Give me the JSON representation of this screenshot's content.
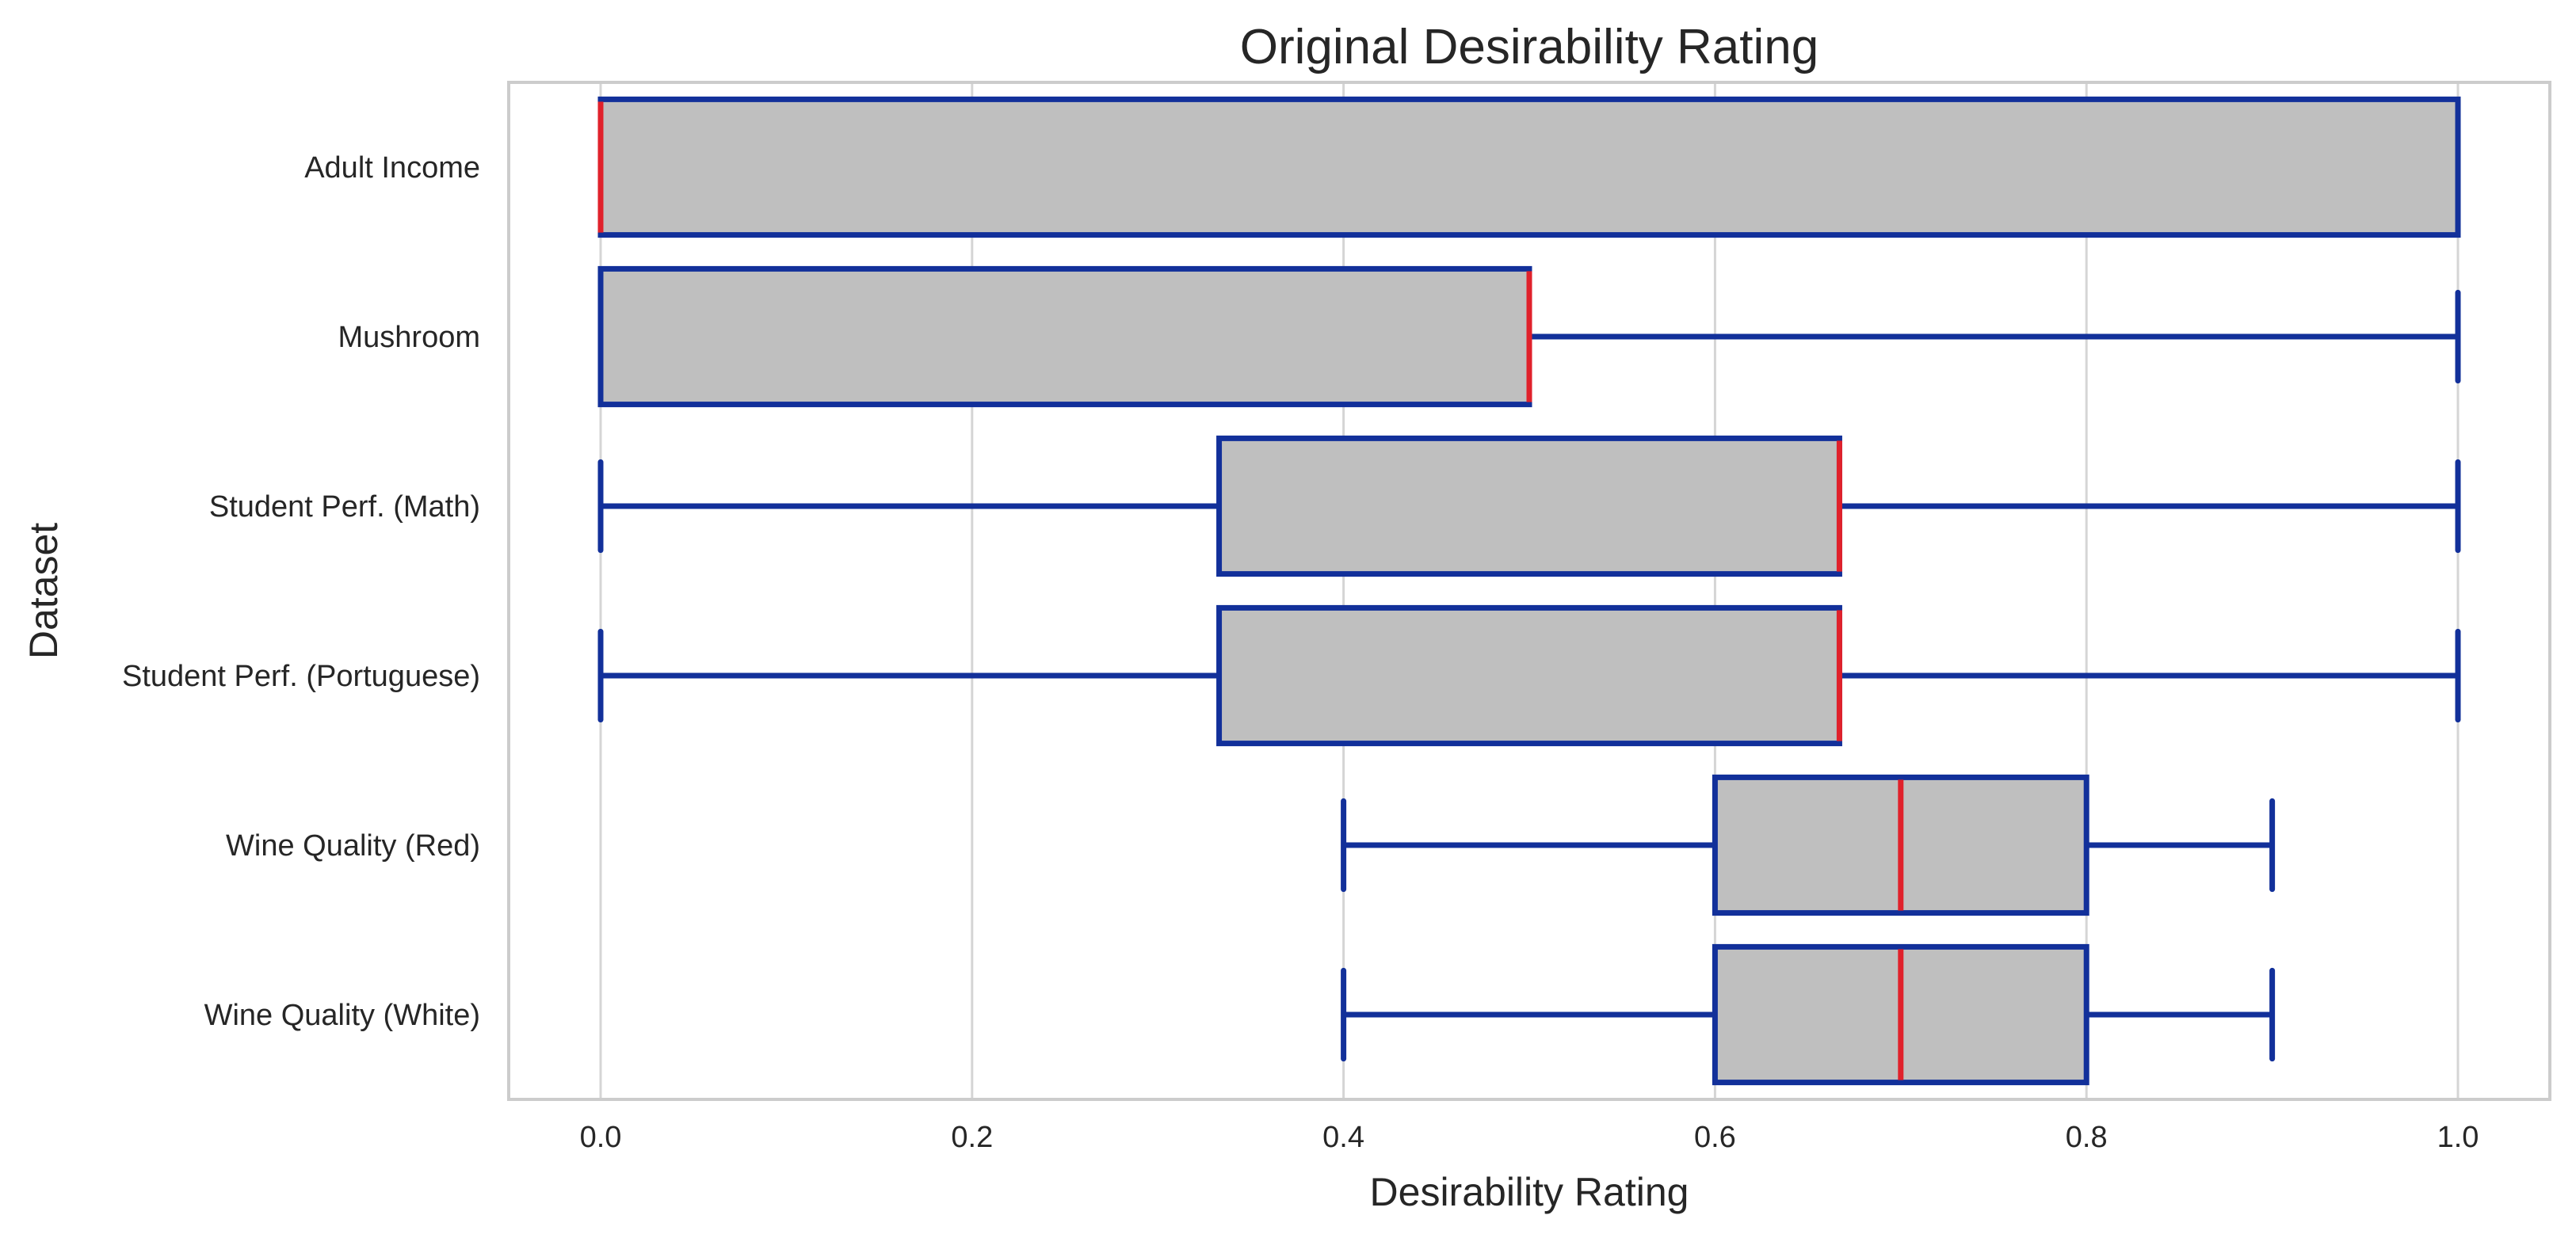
{
  "colors": {
    "box_fill": "#bfbfbf",
    "box_edge": "#12309a",
    "median": "#e0212b",
    "grid": "#d5d5d5",
    "frame": "#cccccc",
    "text": "#262626"
  },
  "chart_data": {
    "type": "box",
    "orientation": "horizontal",
    "title": "Original Desirability Rating",
    "xlabel": "Desirability Rating",
    "ylabel": "Dataset",
    "xlim": [
      -0.05,
      1.05
    ],
    "xticks": [
      0.0,
      0.2,
      0.4,
      0.6,
      0.8,
      1.0
    ],
    "xtick_labels": [
      "0.0",
      "0.2",
      "0.4",
      "0.6",
      "0.8",
      "1.0"
    ],
    "grid": "vertical",
    "categories": [
      "Adult Income",
      "Mushroom",
      "Student Perf. (Math)",
      "Student Perf. (Portuguese)",
      "Wine Quality (Red)",
      "Wine Quality (White)"
    ],
    "boxes": [
      {
        "whislo": 0.0,
        "q1": 0.0,
        "med": 0.0,
        "q3": 1.0,
        "whishi": 1.0
      },
      {
        "whislo": 0.0,
        "q1": 0.0,
        "med": 0.5,
        "q3": 0.5,
        "whishi": 1.0
      },
      {
        "whislo": 0.0,
        "q1": 0.333,
        "med": 0.667,
        "q3": 0.667,
        "whishi": 1.0
      },
      {
        "whislo": 0.0,
        "q1": 0.333,
        "med": 0.667,
        "q3": 0.667,
        "whishi": 1.0
      },
      {
        "whislo": 0.4,
        "q1": 0.6,
        "med": 0.7,
        "q3": 0.8,
        "whishi": 0.9
      },
      {
        "whislo": 0.4,
        "q1": 0.6,
        "med": 0.7,
        "q3": 0.8,
        "whishi": 0.9
      }
    ]
  }
}
